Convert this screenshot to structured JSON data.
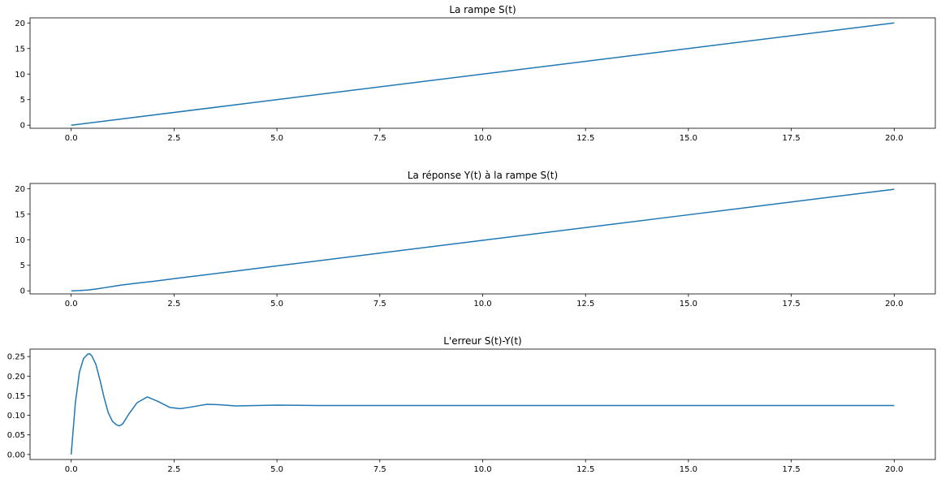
{
  "colors": {
    "series": "#1f77b4"
  },
  "chart_data": [
    {
      "type": "line",
      "title": "La rampe S(t)",
      "xlim": [
        -1,
        21
      ],
      "ylim": [
        -0.6,
        21.0
      ],
      "xticks": [
        0.0,
        2.5,
        5.0,
        7.5,
        10.0,
        12.5,
        15.0,
        17.5,
        20.0
      ],
      "xtick_labels": [
        "0.0",
        "2.5",
        "5.0",
        "7.5",
        "10.0",
        "12.5",
        "15.0",
        "17.5",
        "20.0"
      ],
      "yticks": [
        0,
        5,
        10,
        15,
        20
      ],
      "ytick_labels": [
        "0",
        "5",
        "10",
        "15",
        "20"
      ],
      "grid": false,
      "series": [
        {
          "x": [
            0,
            20
          ],
          "y": [
            0,
            20
          ]
        }
      ]
    },
    {
      "type": "line",
      "title": "La réponse Y(t) à la rampe S(t)",
      "xlim": [
        -1,
        21
      ],
      "ylim": [
        -0.6,
        21.0
      ],
      "xticks": [
        0.0,
        2.5,
        5.0,
        7.5,
        10.0,
        12.5,
        15.0,
        17.5,
        20.0
      ],
      "xtick_labels": [
        "0.0",
        "2.5",
        "5.0",
        "7.5",
        "10.0",
        "12.5",
        "15.0",
        "17.5",
        "20.0"
      ],
      "yticks": [
        0,
        5,
        10,
        15,
        20
      ],
      "ytick_labels": [
        "0",
        "5",
        "10",
        "15",
        "20"
      ],
      "grid": false,
      "series": [
        {
          "x": [
            0,
            0.2,
            0.4,
            0.6,
            0.8,
            1.0,
            1.2,
            1.5,
            1.8,
            2.0,
            2.5,
            3.0,
            4.0,
            5.0,
            10.0,
            15.0,
            20.0
          ],
          "y": [
            0,
            0.05,
            0.15,
            0.35,
            0.6,
            0.85,
            1.1,
            1.4,
            1.68,
            1.87,
            2.38,
            2.87,
            3.875,
            4.875,
            9.875,
            14.875,
            19.875
          ]
        }
      ]
    },
    {
      "type": "line",
      "title": "L'erreur S(t)-Y(t)",
      "xlim": [
        -1,
        21
      ],
      "ylim": [
        -0.0128,
        0.269
      ],
      "xticks": [
        0.0,
        2.5,
        5.0,
        7.5,
        10.0,
        12.5,
        15.0,
        17.5,
        20.0
      ],
      "xtick_labels": [
        "0.0",
        "2.5",
        "5.0",
        "7.5",
        "10.0",
        "12.5",
        "15.0",
        "17.5",
        "20.0"
      ],
      "yticks": [
        0.0,
        0.05,
        0.1,
        0.15,
        0.2,
        0.25
      ],
      "ytick_labels": [
        "0.00",
        "0.05",
        "0.10",
        "0.15",
        "0.20",
        "0.25"
      ],
      "grid": false,
      "series": [
        {
          "x": [
            0,
            0.1,
            0.2,
            0.3,
            0.4,
            0.45,
            0.5,
            0.6,
            0.7,
            0.8,
            0.9,
            1.0,
            1.1,
            1.17,
            1.25,
            1.4,
            1.6,
            1.85,
            2.1,
            2.4,
            2.65,
            2.9,
            3.3,
            3.6,
            4.0,
            4.5,
            5.0,
            6.0,
            20.0
          ],
          "y": [
            0,
            0.13,
            0.21,
            0.245,
            0.256,
            0.257,
            0.252,
            0.23,
            0.19,
            0.145,
            0.107,
            0.085,
            0.076,
            0.073,
            0.078,
            0.103,
            0.132,
            0.147,
            0.136,
            0.12,
            0.117,
            0.121,
            0.128,
            0.127,
            0.124,
            0.125,
            0.126,
            0.125,
            0.125
          ]
        }
      ]
    }
  ]
}
